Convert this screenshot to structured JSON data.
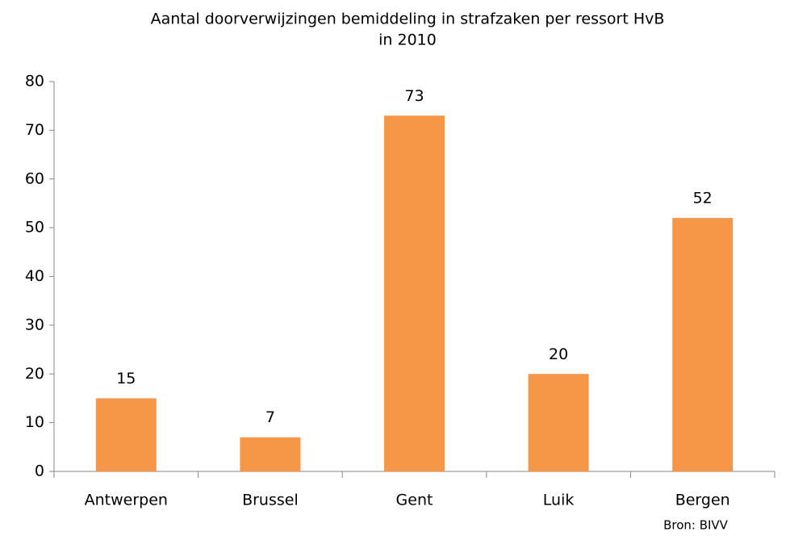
{
  "chart_data": {
    "type": "bar",
    "title": [
      "Aantal doorverwijzingen bemiddeling in strafzaken per ressort HvB",
      "in 2010"
    ],
    "categories": [
      "Antwerpen",
      "Brussel",
      "Gent",
      "Luik",
      "Bergen"
    ],
    "values": [
      15,
      7,
      73,
      20,
      52
    ],
    "color": "#f79646",
    "ylim": [
      0,
      80
    ],
    "yticks": [
      0,
      10,
      20,
      30,
      40,
      50,
      60,
      70,
      80
    ],
    "grid": false,
    "source": "Bron: BIVV"
  }
}
